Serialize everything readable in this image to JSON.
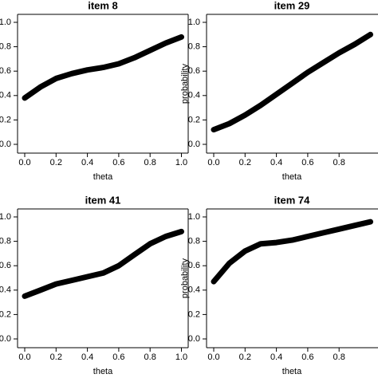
{
  "chart_data": [
    {
      "type": "line",
      "title": "item 8",
      "xlabel": "theta",
      "color": "#000000",
      "x": [
        0,
        0.1,
        0.2,
        0.3,
        0.4,
        0.5,
        0.6,
        0.7,
        0.8,
        0.9,
        1
      ],
      "values": [
        0.38,
        0.47,
        0.54,
        0.58,
        0.61,
        0.63,
        0.66,
        0.71,
        0.77,
        0.83,
        0.88
      ],
      "xlim": [
        0,
        1
      ],
      "ylim": [
        0,
        1
      ],
      "xticks": [
        {
          "value": 0,
          "label": "0.0"
        },
        0.2,
        0.4,
        0.6,
        0.8,
        {
          "value": 1,
          "label": "1.0"
        }
      ],
      "yticks": [
        {
          "value": 0,
          "label": "0.0"
        },
        0.2,
        0.4,
        0.6,
        0.8,
        {
          "value": 1,
          "label": "1.0"
        }
      ]
    },
    {
      "type": "line",
      "title": "item 29",
      "xlabel": "theta",
      "ylabel": "probability",
      "color": "#000000",
      "x": [
        0,
        0.1,
        0.2,
        0.3,
        0.4,
        0.5,
        0.6,
        0.7,
        0.8,
        0.9,
        1
      ],
      "values": [
        0.12,
        0.17,
        0.24,
        0.32,
        0.41,
        0.5,
        0.59,
        0.67,
        0.75,
        0.82,
        0.9
      ],
      "xlim": [
        0,
        1
      ],
      "ylim": [
        0,
        1
      ],
      "xticks": [
        {
          "value": 0,
          "label": "0.0"
        },
        0.2,
        0.4,
        0.6,
        0.8
      ],
      "yticks": [
        {
          "value": 0,
          "label": "0.0"
        },
        0.2,
        0.4,
        0.6,
        0.8,
        {
          "value": 1,
          "label": "1.0"
        }
      ]
    },
    {
      "type": "line",
      "title": "item 41",
      "xlabel": "theta",
      "color": "#000000",
      "x": [
        0,
        0.1,
        0.2,
        0.3,
        0.4,
        0.5,
        0.6,
        0.7,
        0.8,
        0.9,
        1
      ],
      "values": [
        0.35,
        0.4,
        0.45,
        0.48,
        0.51,
        0.54,
        0.6,
        0.69,
        0.78,
        0.84,
        0.88
      ],
      "xlim": [
        0,
        1
      ],
      "ylim": [
        0,
        1
      ],
      "xticks": [
        {
          "value": 0,
          "label": "0.0"
        },
        0.2,
        0.4,
        0.6,
        0.8,
        {
          "value": 1,
          "label": "1.0"
        }
      ],
      "yticks": [
        {
          "value": 0,
          "label": "0.0"
        },
        0.2,
        0.4,
        0.6,
        0.8,
        {
          "value": 1,
          "label": "1.0"
        }
      ]
    },
    {
      "type": "line",
      "title": "item 74",
      "xlabel": "theta",
      "ylabel": "probability",
      "color": "#000000",
      "x": [
        0,
        0.1,
        0.2,
        0.3,
        0.4,
        0.5,
        0.6,
        0.7,
        0.8,
        0.9,
        1
      ],
      "values": [
        0.47,
        0.62,
        0.72,
        0.78,
        0.79,
        0.81,
        0.84,
        0.87,
        0.9,
        0.93,
        0.96
      ],
      "xlim": [
        0,
        1
      ],
      "ylim": [
        0,
        1
      ],
      "xticks": [
        {
          "value": 0,
          "label": "0.0"
        },
        0.2,
        0.4,
        0.6,
        0.8
      ],
      "yticks": [
        {
          "value": 0,
          "label": "0.0"
        },
        0.2,
        0.4,
        0.6,
        0.8,
        {
          "value": 1,
          "label": "1.0"
        }
      ]
    }
  ]
}
